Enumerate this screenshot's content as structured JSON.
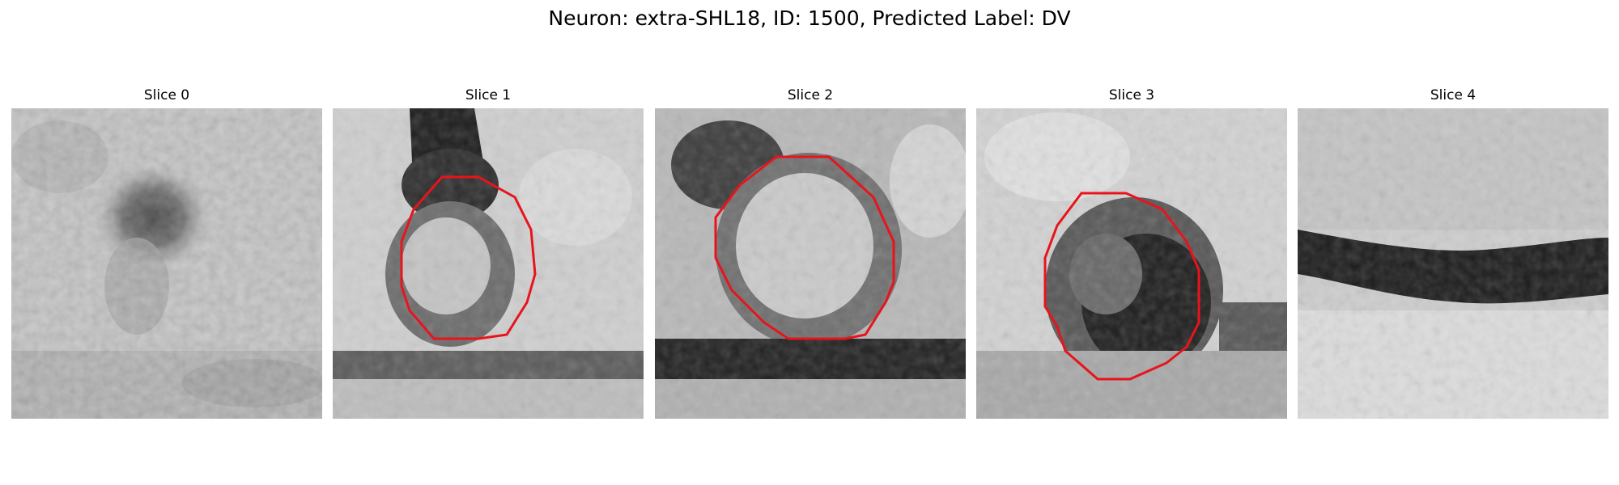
{
  "figure": {
    "title": "Neuron: extra-SHL18, ID: 1500, Predicted Label: DV"
  },
  "panels": [
    {
      "title": "Slice 0",
      "has_contour": false
    },
    {
      "title": "Slice 1",
      "has_contour": true
    },
    {
      "title": "Slice 2",
      "has_contour": true
    },
    {
      "title": "Slice 3",
      "has_contour": true
    },
    {
      "title": "Slice 4",
      "has_contour": false
    }
  ],
  "colors": {
    "contour": "#e8141c",
    "background": "#ffffff"
  }
}
